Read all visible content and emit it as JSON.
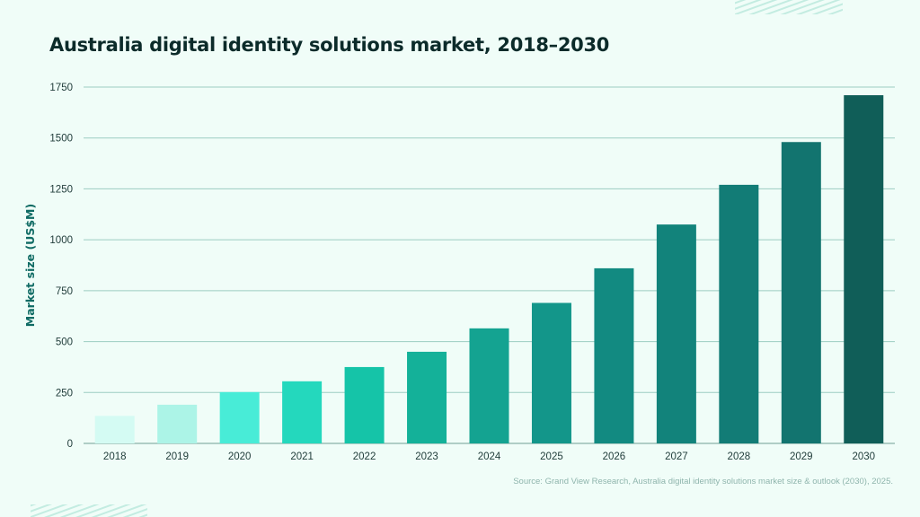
{
  "chart_data": {
    "type": "bar",
    "title": "Australia digital identity solutions market, 2018–2030",
    "xlabel": "",
    "ylabel": "Market size (US$M)",
    "ylim": [
      0,
      1750
    ],
    "yticks": [
      0,
      250,
      500,
      750,
      1000,
      1250,
      1500,
      1750
    ],
    "grid": true,
    "categories": [
      "2018",
      "2019",
      "2020",
      "2021",
      "2022",
      "2023",
      "2024",
      "2025",
      "2026",
      "2027",
      "2028",
      "2029",
      "2030"
    ],
    "values": [
      135,
      190,
      252,
      305,
      375,
      450,
      565,
      690,
      860,
      1075,
      1270,
      1480,
      1710
    ],
    "bar_colors": [
      "#d4fbf3",
      "#acf4e7",
      "#48ecd7",
      "#24d8bd",
      "#15c4a8",
      "#14b199",
      "#14a391",
      "#13968a",
      "#128a81",
      "#12837b",
      "#127c76",
      "#12746f",
      "#105e58"
    ]
  },
  "source": "Source: Grand View Research, Australia digital identity solutions market size & outlook (2030), 2025."
}
